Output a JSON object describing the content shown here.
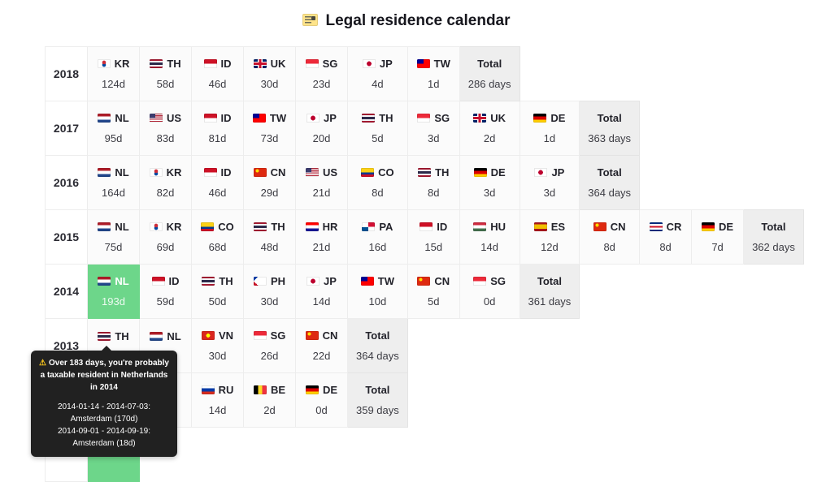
{
  "title": {
    "icon": "calendar-icon",
    "text": "Legal residence calendar"
  },
  "colors": {
    "highlight_green": "#6dd68a",
    "tooltip_bg": "#212121",
    "total_cell_bg": "#eeeeee",
    "warning_yellow": "#f8c51c"
  },
  "tooltip": {
    "warning": "Over 183 days, you're probably a taxable resident in Netherlands in 2014",
    "periods": [
      "2014-01-14 - 2014-07-03: Amsterdam (170d)",
      "2014-09-01 - 2014-09-19: Amsterdam (18d)"
    ]
  },
  "table": {
    "total_label": "Total",
    "rows": [
      {
        "year": "2018",
        "countries": [
          {
            "code": "KR",
            "days": "124d"
          },
          {
            "code": "TH",
            "days": "58d"
          },
          {
            "code": "ID",
            "days": "46d"
          },
          {
            "code": "UK",
            "days": "30d"
          },
          {
            "code": "SG",
            "days": "23d"
          },
          {
            "code": "JP",
            "days": "4d"
          },
          {
            "code": "TW",
            "days": "1d"
          }
        ],
        "total": "286 days"
      },
      {
        "year": "2017",
        "countries": [
          {
            "code": "NL",
            "days": "95d"
          },
          {
            "code": "US",
            "days": "83d"
          },
          {
            "code": "ID",
            "days": "81d"
          },
          {
            "code": "TW",
            "days": "73d"
          },
          {
            "code": "JP",
            "days": "20d"
          },
          {
            "code": "TH",
            "days": "5d"
          },
          {
            "code": "SG",
            "days": "3d"
          },
          {
            "code": "UK",
            "days": "2d"
          },
          {
            "code": "DE",
            "days": "1d"
          }
        ],
        "total": "363 days"
      },
      {
        "year": "2016",
        "countries": [
          {
            "code": "NL",
            "days": "164d"
          },
          {
            "code": "KR",
            "days": "82d"
          },
          {
            "code": "ID",
            "days": "46d"
          },
          {
            "code": "CN",
            "days": "29d"
          },
          {
            "code": "US",
            "days": "21d"
          },
          {
            "code": "CO",
            "days": "8d"
          },
          {
            "code": "TH",
            "days": "8d"
          },
          {
            "code": "DE",
            "days": "3d"
          },
          {
            "code": "JP",
            "days": "3d"
          }
        ],
        "total": "364 days"
      },
      {
        "year": "2015",
        "countries": [
          {
            "code": "NL",
            "days": "75d"
          },
          {
            "code": "KR",
            "days": "69d"
          },
          {
            "code": "CO",
            "days": "68d"
          },
          {
            "code": "TH",
            "days": "48d"
          },
          {
            "code": "HR",
            "days": "21d"
          },
          {
            "code": "PA",
            "days": "16d"
          },
          {
            "code": "ID",
            "days": "15d"
          },
          {
            "code": "HU",
            "days": "14d"
          },
          {
            "code": "ES",
            "days": "12d"
          },
          {
            "code": "CN",
            "days": "8d"
          },
          {
            "code": "CR",
            "days": "8d"
          },
          {
            "code": "DE",
            "days": "7d"
          }
        ],
        "total": "362 days"
      },
      {
        "year": "2014",
        "countries": [
          {
            "code": "NL",
            "days": "193d",
            "highlight": true
          },
          {
            "code": "ID",
            "days": "59d"
          },
          {
            "code": "TH",
            "days": "50d"
          },
          {
            "code": "PH",
            "days": "30d"
          },
          {
            "code": "JP",
            "days": "14d"
          },
          {
            "code": "TW",
            "days": "10d"
          },
          {
            "code": "CN",
            "days": "5d"
          },
          {
            "code": "SG",
            "days": "0d"
          }
        ],
        "total": "361 days"
      },
      {
        "year": "2013",
        "countries": [
          {
            "code": "TH",
            "days": ""
          },
          {
            "code": "NL",
            "days": ""
          },
          {
            "code": "VN",
            "days": "30d"
          },
          {
            "code": "SG",
            "days": "26d"
          },
          {
            "code": "CN",
            "days": "22d"
          }
        ],
        "total": "364 days"
      },
      {
        "year": "",
        "countries": [
          {
            "code": "",
            "days": "",
            "highlight": true
          },
          {
            "code": "",
            "days": ""
          },
          {
            "code": "RU",
            "days": "14d"
          },
          {
            "code": "BE",
            "days": "2d"
          },
          {
            "code": "DE",
            "days": "0d"
          }
        ],
        "total": "359 days"
      },
      {
        "year": "",
        "countries": [
          {
            "code": "",
            "days": "",
            "highlight": true
          }
        ],
        "total": null
      }
    ]
  }
}
